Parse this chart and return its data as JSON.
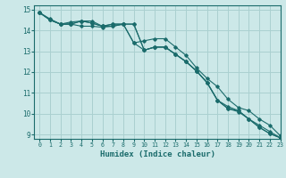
{
  "xlabel": "Humidex (Indice chaleur)",
  "background_color": "#cce8e8",
  "grid_color": "#aad0d0",
  "line_color": "#1a6b6b",
  "xlim": [
    -0.5,
    23
  ],
  "ylim": [
    8.8,
    15.2
  ],
  "yticks": [
    9,
    10,
    11,
    12,
    13,
    14,
    15
  ],
  "xticks": [
    0,
    1,
    2,
    3,
    4,
    5,
    6,
    7,
    8,
    9,
    10,
    11,
    12,
    13,
    14,
    15,
    16,
    17,
    18,
    19,
    20,
    21,
    22,
    23
  ],
  "series": [
    [
      14.85,
      14.5,
      14.3,
      14.3,
      14.45,
      14.45,
      14.2,
      14.3,
      14.3,
      14.3,
      13.05,
      13.2,
      13.2,
      12.85,
      12.5,
      12.05,
      11.5,
      10.65,
      10.25,
      10.15,
      9.75,
      9.35,
      9.05,
      8.85
    ],
    [
      14.85,
      14.5,
      14.3,
      14.3,
      14.45,
      14.35,
      14.2,
      14.2,
      14.3,
      13.4,
      13.5,
      13.6,
      13.6,
      13.2,
      12.8,
      12.2,
      11.7,
      11.3,
      10.7,
      10.3,
      10.15,
      9.75,
      9.45,
      8.95
    ],
    [
      14.85,
      14.55,
      14.3,
      14.4,
      14.45,
      14.35,
      14.2,
      14.3,
      14.3,
      13.4,
      13.05,
      13.2,
      13.2,
      12.85,
      12.5,
      12.05,
      11.5,
      10.65,
      10.35,
      10.15,
      9.75,
      9.45,
      9.15,
      8.85
    ],
    [
      14.85,
      14.5,
      14.3,
      14.3,
      14.2,
      14.2,
      14.15,
      14.2,
      14.3,
      14.3,
      13.05,
      13.2,
      13.2,
      12.85,
      12.5,
      12.05,
      11.5,
      10.65,
      10.25,
      10.1,
      9.75,
      9.35,
      9.05,
      8.85
    ]
  ]
}
